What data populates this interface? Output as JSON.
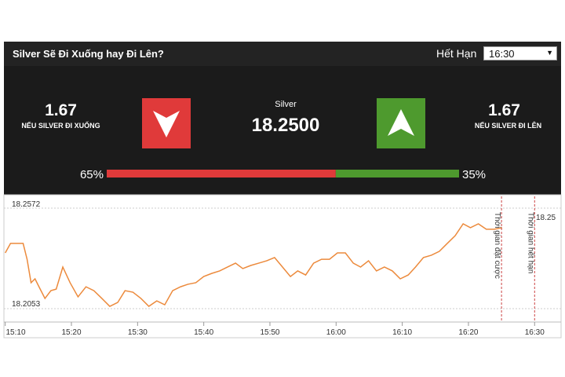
{
  "header": {
    "title": "Silver Sẽ Đi Xuống hay Đi Lên?",
    "expiry_label": "Hết Hạn",
    "expiry_value": "16:30"
  },
  "panel": {
    "down": {
      "payout": "1.67",
      "label": "NẾU SILVER ĐI XUỐNG"
    },
    "asset": "Silver",
    "price": "18.2500",
    "up": {
      "payout": "1.67",
      "label": "NẾU SILVER ĐI LÊN"
    },
    "sentiment": {
      "values": [
        65,
        35
      ],
      "value_labels": [
        "65%",
        "35%"
      ],
      "colors": [
        "#e03a3a",
        "#4e9a2e"
      ]
    }
  },
  "chart": {
    "type": "line",
    "color": "#ec8a3c",
    "x": [
      910.0,
      910.8,
      912.7,
      913.3,
      913.9,
      914.5,
      915.1,
      916.0,
      916.9,
      917.7,
      918.7,
      919.8,
      921.0,
      922.2,
      923.4,
      924.6,
      925.8,
      927.0,
      928.1,
      929.3,
      930.5,
      931.7,
      932.9,
      934.1,
      935.3,
      936.5,
      937.6,
      938.8,
      940.0,
      941.2,
      942.4,
      943.6,
      944.8,
      945.9,
      947.1,
      948.3,
      949.5,
      950.7,
      951.9,
      953.1,
      954.2,
      955.4,
      956.6,
      957.8,
      959.0,
      960.2,
      961.4,
      962.6,
      963.7,
      964.9,
      966.1,
      967.3,
      968.5,
      969.7,
      970.9,
      972.0,
      973.2,
      974.4,
      975.6,
      976.8,
      978.0,
      979.2,
      980.3,
      981.5,
      982.7,
      983.9,
      985.1
    ],
    "values": [
      18.2341,
      18.239,
      18.239,
      18.2308,
      18.2187,
      18.2207,
      18.2166,
      18.2106,
      18.2146,
      18.2154,
      18.2268,
      18.2187,
      18.2114,
      18.2166,
      18.2146,
      18.2106,
      18.2065,
      18.2085,
      18.2146,
      18.2138,
      18.2106,
      18.2065,
      18.2093,
      18.2073,
      18.2146,
      18.2166,
      18.2179,
      18.2187,
      18.2219,
      18.2235,
      18.2248,
      18.2268,
      18.2288,
      18.226,
      18.2276,
      18.2288,
      18.23,
      18.2317,
      18.2268,
      18.2219,
      18.2248,
      18.2227,
      18.2288,
      18.2308,
      18.2308,
      18.2341,
      18.2341,
      18.2288,
      18.2268,
      18.23,
      18.2248,
      18.2268,
      18.2248,
      18.2207,
      18.2227,
      18.2268,
      18.2317,
      18.2329,
      18.2349,
      18.239,
      18.243,
      18.2491,
      18.2471,
      18.2491,
      18.2463,
      18.2463,
      18.2471
    ],
    "xlim": [
      909.8,
      994.0
    ],
    "ylim": [
      18.1984,
      18.2633
    ],
    "xticks": [
      {
        "value": 910,
        "label": "15:10"
      },
      {
        "value": 920,
        "label": "15:20"
      },
      {
        "value": 930,
        "label": "15:30"
      },
      {
        "value": 940,
        "label": "15:40"
      },
      {
        "value": 950,
        "label": "15:50"
      },
      {
        "value": 960,
        "label": "16:00"
      },
      {
        "value": 970,
        "label": "16:10"
      },
      {
        "value": 980,
        "label": "16:20"
      },
      {
        "value": 990,
        "label": "16:30"
      }
    ],
    "yticks": [
      18.2572,
      18.2053
    ],
    "markers": [
      {
        "x": 985,
        "label": "Thời gian đặt cược"
      },
      {
        "x": 990,
        "label": "Thời gian hết hạn"
      }
    ],
    "current_label": "18.25",
    "grid": true
  }
}
